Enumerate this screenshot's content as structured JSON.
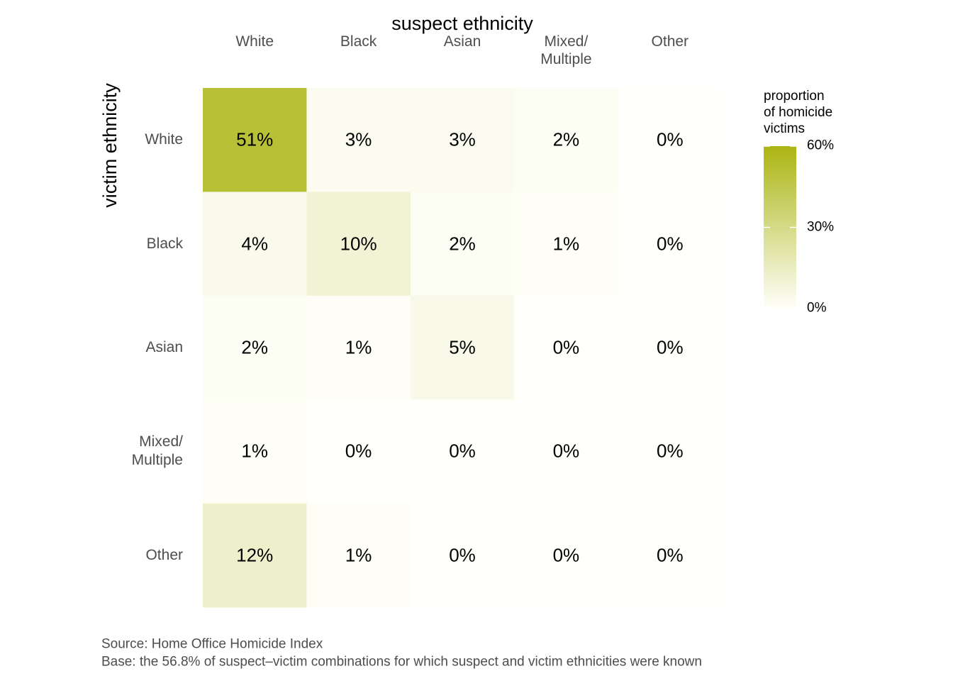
{
  "chart_data": {
    "type": "heatmap",
    "x_label": "suspect ethnicity",
    "y_label": "victim ethnicity",
    "x_categories": [
      "White",
      "Black",
      "Asian",
      "Mixed/\nMultiple",
      "Other"
    ],
    "y_categories": [
      "White",
      "Black",
      "Asian",
      "Mixed/\nMultiple",
      "Other"
    ],
    "values": [
      [
        51,
        3,
        3,
        2,
        0
      ],
      [
        4,
        10,
        2,
        1,
        0
      ],
      [
        2,
        1,
        5,
        0,
        0
      ],
      [
        1,
        0,
        0,
        0,
        0
      ],
      [
        12,
        1,
        0,
        0,
        0
      ]
    ],
    "value_labels": [
      [
        "51%",
        "3%",
        "3%",
        "2%",
        "0%"
      ],
      [
        "4%",
        "10%",
        "2%",
        "1%",
        "0%"
      ],
      [
        "2%",
        "1%",
        "5%",
        "0%",
        "0%"
      ],
      [
        "1%",
        "0%",
        "0%",
        "0%",
        "0%"
      ],
      [
        "12%",
        "1%",
        "0%",
        "0%",
        "0%"
      ]
    ],
    "legend_title": "proportion\nof homicide\nvictims",
    "colorscale": [
      "#fffffb",
      "#abb512"
    ],
    "clim": [
      0,
      60
    ],
    "cticks": [
      {
        "value": 0,
        "label": "0%"
      },
      {
        "value": 30,
        "label": "30%"
      },
      {
        "value": 60,
        "label": "60%"
      }
    ],
    "caption": [
      "Source: Home Office Homicide Index",
      "Base: the 56.8% of suspect–victim combinations for which suspect and victim ethnicities were known"
    ]
  }
}
